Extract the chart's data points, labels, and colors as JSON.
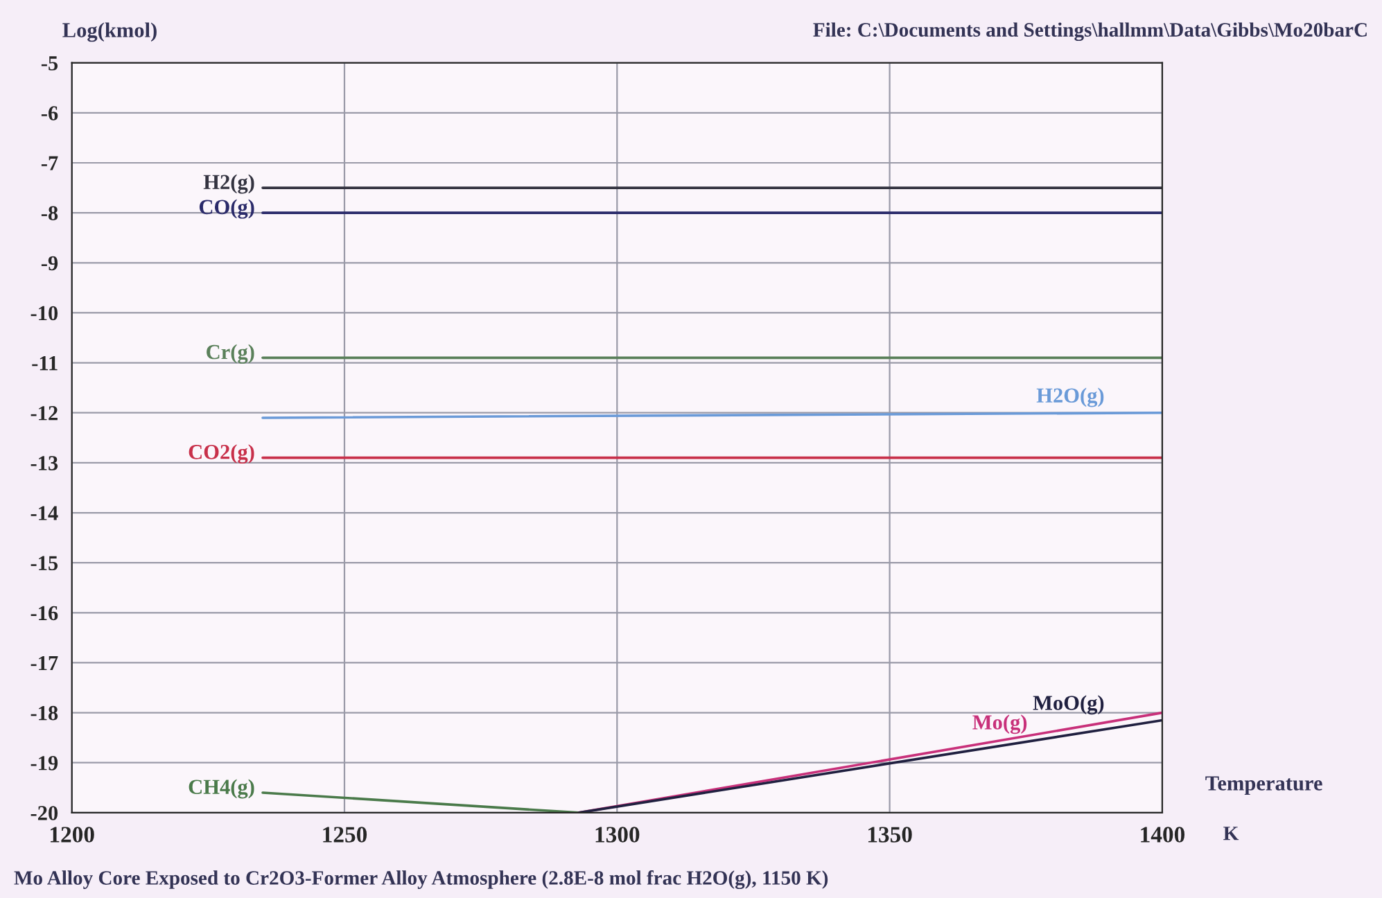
{
  "chart_data": {
    "type": "line",
    "ylabel": "Log(kmol)",
    "xlabel": "Temperature",
    "annotations": [
      "File: C:\\Documents and Settings\\hallmm\\Data\\Gibbs\\Mo20barC",
      "K",
      "Mo Alloy Core Exposed to Cr2O3-Former Alloy Atmosphere (2.8E-8 mol frac H2O(g), 1150 K)"
    ],
    "xlim": [
      1200,
      1400
    ],
    "xticks": [
      1200,
      1250,
      1300,
      1350,
      1400
    ],
    "ylim": [
      -20,
      -5
    ],
    "yticks": [
      -20,
      -19,
      -18,
      -17,
      -16,
      -15,
      -14,
      -13,
      -12,
      -11,
      -10,
      -9,
      -8,
      -7,
      -6,
      -5
    ],
    "grid": true,
    "legend": false,
    "marker": "none",
    "line_style": "solid",
    "series": [
      {
        "name": "H2(g)",
        "color": "#333340",
        "x": [
          1235,
          1400
        ],
        "values": [
          -7.5,
          -7.5
        ]
      },
      {
        "name": "CO(g)",
        "color": "#2a2a6a",
        "x": [
          1235,
          1400
        ],
        "values": [
          -8.0,
          -8.0
        ]
      },
      {
        "name": "Cr(g)",
        "color": "#5a805a",
        "x": [
          1235,
          1400
        ],
        "values": [
          -10.9,
          -10.9
        ]
      },
      {
        "name": "H2O(g)",
        "color": "#6a9ad8",
        "x": [
          1235,
          1400
        ],
        "values": [
          -12.1,
          -12.0
        ]
      },
      {
        "name": "CO2(g)",
        "color": "#c8304a",
        "x": [
          1235,
          1400
        ],
        "values": [
          -12.9,
          -12.9
        ]
      },
      {
        "name": "CH4(g)",
        "color": "#4a7a4a",
        "x": [
          1235,
          1293
        ],
        "values": [
          -19.6,
          -20.0
        ]
      },
      {
        "name": "Mo(g)",
        "color": "#c8307a",
        "x": [
          1293,
          1400
        ],
        "values": [
          -20.0,
          -18.0
        ]
      },
      {
        "name": "MoO(g)",
        "color": "#202040",
        "x": [
          1293,
          1400
        ],
        "values": [
          -20.0,
          -18.15
        ]
      }
    ]
  }
}
